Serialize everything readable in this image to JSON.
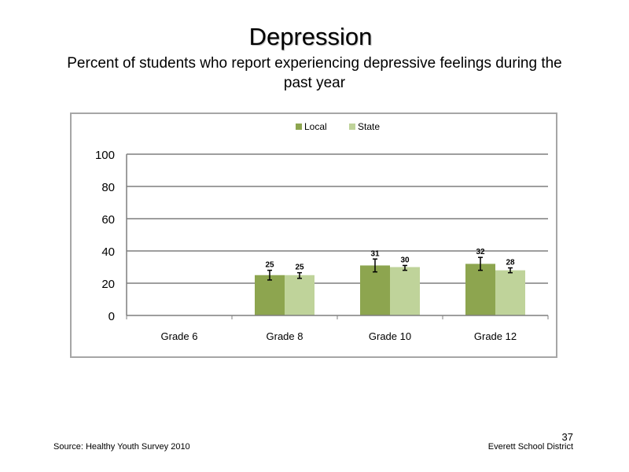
{
  "slide": {
    "title": "Depression",
    "subtitle": "Percent of students who report experiencing  depressive feelings during  the past year",
    "source": "Source: Healthy Youth Survey 2010",
    "district": "Everett School District",
    "page_number": "37"
  },
  "colors": {
    "local": "#8da54f",
    "state": "#bfd39a",
    "grid": "#7f7f7f",
    "axis": "#7f7f7f",
    "error_bar": "#000000"
  },
  "chart_data": {
    "type": "bar",
    "title": "",
    "xlabel": "",
    "ylabel": "",
    "ylim": [
      0,
      100
    ],
    "yticks": [
      0,
      20,
      40,
      60,
      80,
      100
    ],
    "grid": true,
    "legend_position": "top-center",
    "categories": [
      "Grade 6",
      "Grade 8",
      "Grade 10",
      "Grade 12"
    ],
    "series": [
      {
        "name": "Local",
        "color": "#8da54f",
        "values": [
          null,
          25,
          31,
          32
        ],
        "data_labels": [
          "",
          "25",
          "31",
          "32"
        ],
        "error_low": [
          null,
          22,
          27,
          28
        ],
        "error_high": [
          null,
          28,
          35,
          36
        ]
      },
      {
        "name": "State",
        "color": "#bfd39a",
        "values": [
          null,
          25,
          30,
          28
        ],
        "data_labels": [
          "",
          "25",
          "30",
          "28"
        ],
        "error_low": [
          null,
          23,
          28,
          26.5
        ],
        "error_high": [
          null,
          26.5,
          31,
          29.5
        ]
      }
    ]
  }
}
